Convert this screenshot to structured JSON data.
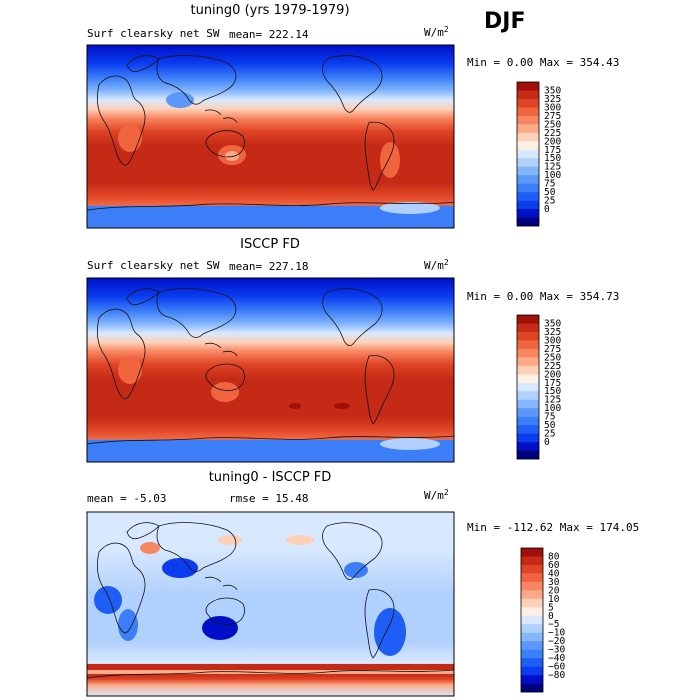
{
  "season": "DJF",
  "colors": {
    "abs": [
      "#00007f",
      "#0010c8",
      "#0a3cf0",
      "#1e5ef5",
      "#3c7ef8",
      "#5c98fa",
      "#84b6fc",
      "#b0d0fd",
      "#d8e8fe",
      "#fff0e6",
      "#fdd0b8",
      "#fbaa88",
      "#f88660",
      "#f0643e",
      "#e04426",
      "#c42a16",
      "#a01008"
    ],
    "diff": [
      "#00007f",
      "#0010c8",
      "#0a3cf0",
      "#1e5ef5",
      "#3c7ef8",
      "#5c98fa",
      "#84b6fc",
      "#b0d0fd",
      "#d8e8fe",
      "#fff0e6",
      "#fdd0b8",
      "#fbaa88",
      "#f88660",
      "#f0643e",
      "#e04426",
      "#c42a16",
      "#a01008"
    ]
  },
  "chart_data": [
    {
      "type": "heatmap",
      "title": "tuning0 (yrs 1979-1979)",
      "label": "Surf clearsky net SW",
      "mean_label": "mean= 222.14",
      "units": "W/m",
      "units_exp": "2",
      "stats": "Min =    0.00 Max = 354.43",
      "colorbar_ticks": [
        "350",
        "325",
        "300",
        "275",
        "250",
        "225",
        "200",
        "175",
        "150",
        "125",
        "100",
        "75",
        "50",
        "25",
        "0"
      ],
      "mean": 222.14,
      "min": 0.0,
      "max": 354.43
    },
    {
      "type": "heatmap",
      "title": "ISCCP FD",
      "label": "Surf clearsky net SW",
      "mean_label": "mean= 227.18",
      "units": "W/m",
      "units_exp": "2",
      "stats": "Min =    0.00 Max = 354.73",
      "colorbar_ticks": [
        "350",
        "325",
        "300",
        "275",
        "250",
        "225",
        "200",
        "175",
        "150",
        "125",
        "100",
        "75",
        "50",
        "25",
        "0"
      ],
      "mean": 227.18,
      "min": 0.0,
      "max": 354.73
    },
    {
      "type": "heatmap",
      "title": "tuning0 - ISCCP FD",
      "label": "mean =   -5.03",
      "mean_label": "rmse =  15.48",
      "units": "W/m",
      "units_exp": "2",
      "stats": "Min = -112.62 Max = 174.05",
      "colorbar_ticks": [
        "80",
        "60",
        "40",
        "30",
        "20",
        "10",
        "5",
        "0",
        "−5",
        "−10",
        "−20",
        "−30",
        "−40",
        "−60",
        "−80"
      ],
      "mean": -5.03,
      "rmse": 15.48,
      "min": -112.62,
      "max": 174.05
    }
  ]
}
